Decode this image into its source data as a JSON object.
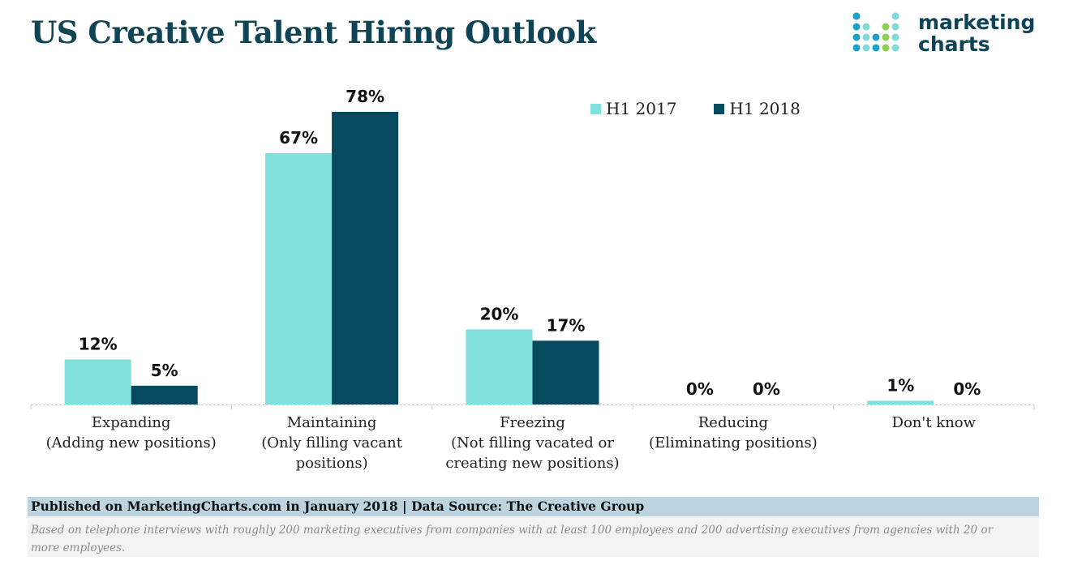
{
  "header": {
    "title": "US Creative Talent Hiring Outlook",
    "logo_line1": "marketing",
    "logo_line2": "charts"
  },
  "colors": {
    "title": "#0f4457",
    "h1_2017": "#7fe0dc",
    "h1_2018": "#054a5f",
    "axis": "#cccccc",
    "footer_bar": "#bcd4df",
    "footer_note_bg": "#f3f3f3",
    "logo_dots": [
      "#1ba1c5",
      "#7fdad9",
      "#8fd14f"
    ]
  },
  "chart_data": {
    "type": "bar",
    "title": "US Creative Talent Hiring Outlook",
    "xlabel": "",
    "ylabel": "",
    "ylim": [
      0,
      80
    ],
    "grid": false,
    "legend_position": "top-right",
    "categories": [
      [
        "Expanding",
        "(Adding new positions)"
      ],
      [
        "Maintaining",
        "(Only filling vacant",
        "positions)"
      ],
      [
        "Freezing",
        "(Not filling vacated or",
        "creating new positions)"
      ],
      [
        "Reducing",
        "(Eliminating positions)"
      ],
      [
        "Don't know"
      ]
    ],
    "series": [
      {
        "name": "H1 2017",
        "values": [
          12,
          67,
          20,
          0,
          1
        ],
        "labels": [
          "12%",
          "67%",
          "20%",
          "0%",
          "1%"
        ]
      },
      {
        "name": "H1 2018",
        "values": [
          5,
          78,
          17,
          0,
          0
        ],
        "labels": [
          "5%",
          "78%",
          "17%",
          "0%",
          "0%"
        ]
      }
    ]
  },
  "footer": {
    "published": "Published on MarketingCharts.com in January 2018 | Data Source: The Creative Group",
    "note": "Based on telephone interviews with roughly 200 marketing executives from companies with at least 100 employees and 200 advertising executives from agencies with 20 or more employees."
  }
}
